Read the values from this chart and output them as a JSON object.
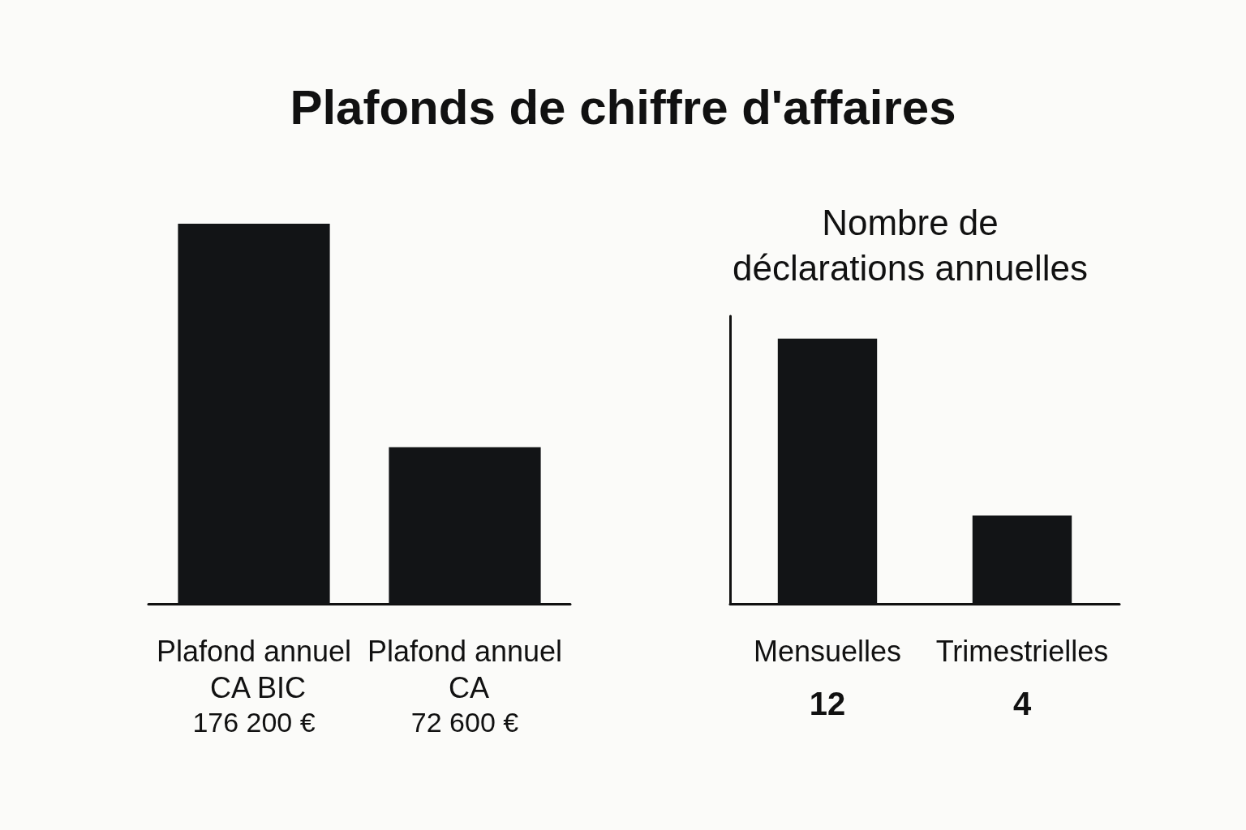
{
  "chart_data": [
    {
      "type": "bar",
      "title": "Plafonds de chiffre d'affaires",
      "categories": [
        "Plafond annuel CA BIC",
        "Plafond annuel CA"
      ],
      "values": [
        176200,
        72600
      ],
      "value_labels": [
        "176 200 €",
        "72 600 €"
      ],
      "color": "#121416"
    },
    {
      "type": "bar",
      "title": "Nombre de déclarations annuelles",
      "categories": [
        "Mensuelles",
        "Trimestrielles"
      ],
      "values": [
        12,
        4
      ],
      "data_labels": true,
      "color": "#121416",
      "tick_labels": "x"
    }
  ]
}
